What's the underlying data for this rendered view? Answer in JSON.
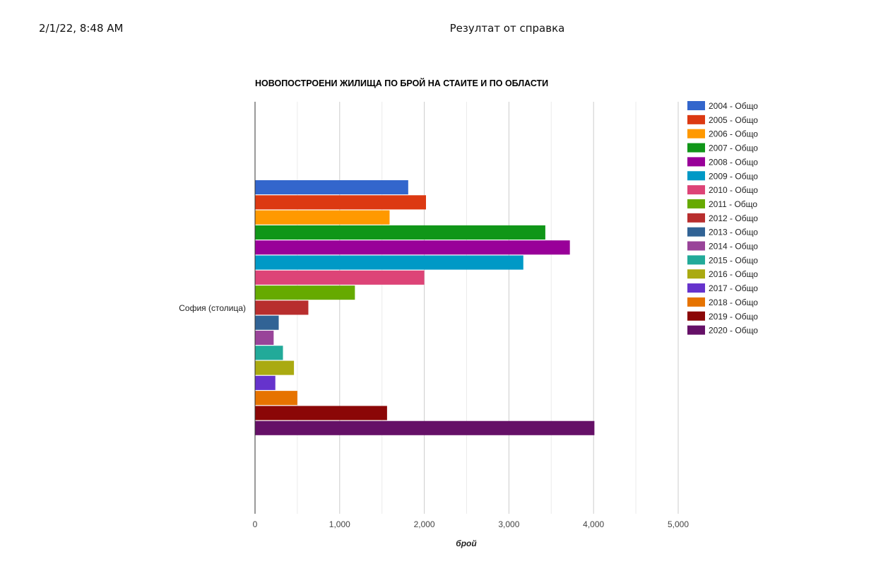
{
  "header": {
    "datetime": "2/1/22, 8:48 AM",
    "page_title": "Резултат от справка"
  },
  "chart_data": {
    "type": "bar",
    "orientation": "horizontal",
    "title": "НОВОПОСТРОЕНИ ЖИЛИЩА ПО БРОЙ НА СТАИТЕ И ПО ОБЛАСТИ",
    "xlabel": "брой",
    "ylabel": "",
    "xlim": [
      0,
      5000
    ],
    "x_ticks": [
      0,
      1000,
      2000,
      3000,
      4000,
      5000
    ],
    "x_tick_labels": [
      "0",
      "1,000",
      "2,000",
      "3,000",
      "4,000",
      "5,000"
    ],
    "grid": true,
    "legend_position": "right",
    "categories": [
      "София (столица)"
    ],
    "series": [
      {
        "name": "2004 - Общо",
        "color": "#3366cc",
        "values": [
          1810
        ]
      },
      {
        "name": "2005 - Общо",
        "color": "#dc3912",
        "values": [
          2020
        ]
      },
      {
        "name": "2006 - Общо",
        "color": "#ff9900",
        "values": [
          1590
        ]
      },
      {
        "name": "2007 - Общо",
        "color": "#109618",
        "values": [
          3430
        ]
      },
      {
        "name": "2008 - Общо",
        "color": "#990099",
        "values": [
          3720
        ]
      },
      {
        "name": "2009 - Общо",
        "color": "#0099c6",
        "values": [
          3170
        ]
      },
      {
        "name": "2010 - Общо",
        "color": "#dd4477",
        "values": [
          2000
        ]
      },
      {
        "name": "2011 - Общо",
        "color": "#66aa00",
        "values": [
          1180
        ]
      },
      {
        "name": "2012 - Общо",
        "color": "#b82e2e",
        "values": [
          630
        ]
      },
      {
        "name": "2013 - Общо",
        "color": "#316395",
        "values": [
          280
        ]
      },
      {
        "name": "2014 - Общо",
        "color": "#994499",
        "values": [
          220
        ]
      },
      {
        "name": "2015 - Общо",
        "color": "#22aa99",
        "values": [
          330
        ]
      },
      {
        "name": "2016 - Общо",
        "color": "#aaaa11",
        "values": [
          460
        ]
      },
      {
        "name": "2017 - Общо",
        "color": "#6633cc",
        "values": [
          240
        ]
      },
      {
        "name": "2018 - Общо",
        "color": "#e67300",
        "values": [
          500
        ]
      },
      {
        "name": "2019 - Общо",
        "color": "#8b0707",
        "values": [
          1560
        ]
      },
      {
        "name": "2020 - Общо",
        "color": "#651067",
        "values": [
          4010
        ]
      }
    ]
  }
}
